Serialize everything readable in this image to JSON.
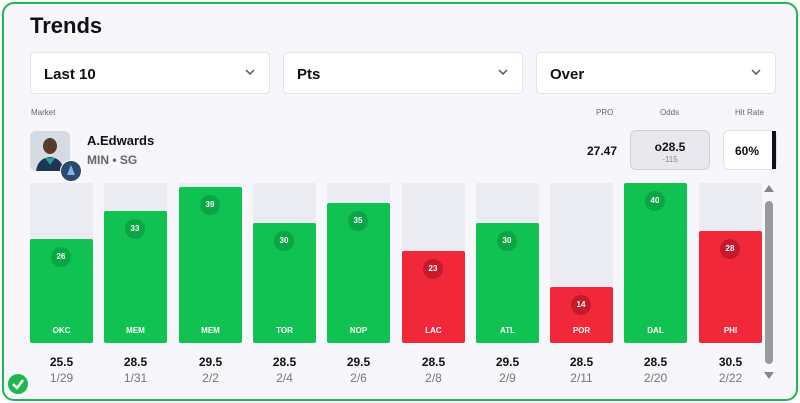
{
  "title": "Trends",
  "filters": {
    "range": "Last 10",
    "stat": "Pts",
    "side": "Over"
  },
  "headers": {
    "market": "Market",
    "pro": "PRO",
    "odds": "Odds",
    "hit_rate": "Hit Rate"
  },
  "player": {
    "name": "A.Edwards",
    "team_pos": "MIN • SG"
  },
  "pro_value": "27.47",
  "odds": {
    "line": "o28.5",
    "juice": "-115"
  },
  "hit_rate": "60%",
  "colors": {
    "hit": "#0fc252",
    "miss": "#f1283a",
    "accent": "#1fb84f"
  },
  "chart_data": {
    "type": "bar",
    "title": "Trends",
    "max": 40,
    "categories": [
      "OKC",
      "MEM",
      "MEM",
      "TOR",
      "NOP",
      "LAC",
      "ATL",
      "POR",
      "DAL",
      "PHI"
    ],
    "values": [
      26,
      33,
      39,
      30,
      35,
      23,
      30,
      14,
      40,
      28
    ],
    "lines": [
      "25.5",
      "28.5",
      "29.5",
      "28.5",
      "29.5",
      "28.5",
      "29.5",
      "28.5",
      "28.5",
      "30.5"
    ],
    "dates": [
      "1/29",
      "1/31",
      "2/2",
      "2/4",
      "2/6",
      "2/8",
      "2/9",
      "2/11",
      "2/20",
      "2/22"
    ],
    "results": [
      "hit",
      "hit",
      "hit",
      "hit",
      "hit",
      "miss",
      "hit",
      "miss",
      "hit",
      "miss"
    ]
  }
}
